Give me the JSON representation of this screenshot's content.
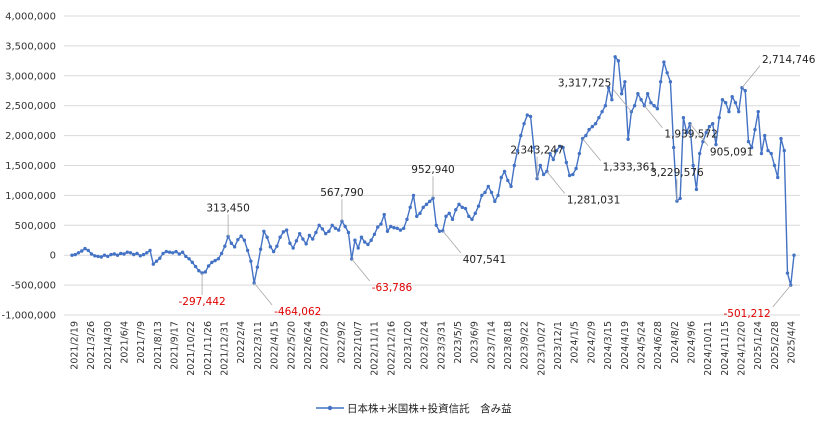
{
  "chart_data": {
    "type": "line",
    "title": "",
    "xlabel": "",
    "ylabel": "",
    "ylim": [
      -1000000,
      4000000
    ],
    "y_ticks": [
      4000000,
      3500000,
      3000000,
      2500000,
      2000000,
      1500000,
      1000000,
      500000,
      0,
      -500000,
      -1000000
    ],
    "y_tick_labels": [
      "4,000,000",
      "3,500,000",
      "3,000,000",
      "2,500,000",
      "2,000,000",
      "1,500,000",
      "1,000,000",
      "500,000",
      "0",
      "-500,000",
      "-1,000,000"
    ],
    "grid": "horizontal",
    "legend": "bottom",
    "series": [
      {
        "name": "日本株+米国株+投資信託　含み益",
        "color": "#4472c4",
        "values": [
          0,
          10000,
          40000,
          70000,
          110000,
          80000,
          20000,
          -10000,
          -20000,
          -30000,
          0,
          -20000,
          10000,
          20000,
          0,
          30000,
          20000,
          50000,
          40000,
          10000,
          30000,
          -10000,
          10000,
          40000,
          80000,
          -150000,
          -100000,
          -50000,
          30000,
          60000,
          50000,
          40000,
          60000,
          20000,
          50000,
          -20000,
          -60000,
          -120000,
          -190000,
          -260000,
          -297442,
          -280000,
          -180000,
          -120000,
          -90000,
          -60000,
          30000,
          150000,
          313450,
          200000,
          140000,
          260000,
          320000,
          250000,
          80000,
          -100000,
          -464062,
          -200000,
          100000,
          400000,
          300000,
          140000,
          60000,
          150000,
          300000,
          390000,
          420000,
          200000,
          120000,
          240000,
          360000,
          270000,
          190000,
          330000,
          270000,
          380000,
          500000,
          440000,
          360000,
          400000,
          500000,
          450000,
          420000,
          567790,
          480000,
          380000,
          -63786,
          250000,
          120000,
          300000,
          220000,
          180000,
          250000,
          350000,
          470000,
          520000,
          680000,
          400000,
          480000,
          460000,
          450000,
          420000,
          450000,
          600000,
          800000,
          1000000,
          650000,
          700000,
          800000,
          850000,
          900000,
          952940,
          500000,
          400000,
          407541,
          650000,
          700000,
          600000,
          760000,
          850000,
          800000,
          780000,
          650000,
          600000,
          700000,
          820000,
          1000000,
          1050000,
          1150000,
          1050000,
          900000,
          1000000,
          1300000,
          1400000,
          1250000,
          1150000,
          1500000,
          1750000,
          2000000,
          2200000,
          2343247,
          2320000,
          1800000,
          1281031,
          1500000,
          1350000,
          1400000,
          1700000,
          1600000,
          1750000,
          1820000,
          1800000,
          1550000,
          1333361,
          1350000,
          1450000,
          1700000,
          1950000,
          2000000,
          2100000,
          2150000,
          2200000,
          2300000,
          2400000,
          2500000,
          2800000,
          2600000,
          3317725,
          3250000,
          2700000,
          2900000,
          1939572,
          2400000,
          2500000,
          2700000,
          2600000,
          2500000,
          2700000,
          2550000,
          2500000,
          2450000,
          2900000,
          3229576,
          3050000,
          2900000,
          1800000,
          905091,
          950000,
          2300000,
          2050000,
          2200000,
          1500000,
          1100000,
          1700000,
          1900000,
          2050000,
          2150000,
          2200000,
          1850000,
          2300000,
          2600000,
          2550000,
          2400000,
          2650000,
          2550000,
          2400000,
          2800000,
          2750000,
          1900000,
          1800000,
          2100000,
          2400000,
          1700000,
          2000000,
          1750000,
          1700000,
          1500000,
          1300000,
          1950000,
          1750000,
          -300000,
          -501212,
          0
        ]
      }
    ],
    "x_tick_labels": [
      "2021/2/19",
      "2021/3/26",
      "2021/4/30",
      "2021/6/4",
      "2021/7/9",
      "2021/8/13",
      "2021/9/17",
      "2021/10/22",
      "2021/11/26",
      "2021/12/31",
      "2022/2/4",
      "2022/3/11",
      "2022/4/15",
      "2022/5/20",
      "2022/6/24",
      "2022/7/29",
      "2022/9/2",
      "2022/10/7",
      "2022/11/11",
      "2022/12/16",
      "2023/1/20",
      "2023/2/24",
      "2023/3/31",
      "2023/5/5",
      "2023/6/9",
      "2023/7/14",
      "2023/8/18",
      "2023/9/22",
      "2023/10/27",
      "2023/12/1",
      "2024/1/5",
      "2024/2/9",
      "2024/3/15",
      "2024/4/19",
      "2024/5/24",
      "2024/6/28",
      "2024/8/2",
      "2024/9/6",
      "2024/10/11",
      "2024/11/15",
      "2024/12/20",
      "2025/1/24",
      "2025/2/28",
      "2025/4/4"
    ],
    "annotations": [
      {
        "index": 40,
        "text": "-297,442",
        "negative": true,
        "dx": 0,
        "dy": 1
      },
      {
        "index": 48,
        "text": "313,450",
        "negative": false,
        "dx": 0,
        "dy": -1
      },
      {
        "index": 56,
        "text": "-464,062",
        "negative": true,
        "dx": 1,
        "dy": 1
      },
      {
        "index": 83,
        "text": "567,790",
        "negative": false,
        "dx": 0,
        "dy": -1
      },
      {
        "index": 86,
        "text": "-63,786",
        "negative": true,
        "dx": 1,
        "dy": 1
      },
      {
        "index": 111,
        "text": "952,940",
        "negative": false,
        "dx": 0,
        "dy": -1
      },
      {
        "index": 114,
        "text": "407,541",
        "negative": false,
        "dx": 1,
        "dy": 1
      },
      {
        "index": 143,
        "text": "2,343,247",
        "negative": false,
        "dx": 0,
        "dy": -1
      },
      {
        "index": 146,
        "text": "1,281,031",
        "negative": false,
        "dx": 1,
        "dy": 1
      },
      {
        "index": 157,
        "text": "1,333,361",
        "negative": false,
        "dx": 1,
        "dy": 1
      },
      {
        "index": 172,
        "text": "3,317,725",
        "negative": false,
        "dx": -1,
        "dy": -1
      },
      {
        "index": 176,
        "text": "1,939,572",
        "negative": false,
        "dx": 1,
        "dy": 1
      },
      {
        "index": 186,
        "text": "3,229,576",
        "negative": false,
        "dx": 0,
        "dy": -1
      },
      {
        "index": 190,
        "text": "905,091",
        "negative": false,
        "dx": 1,
        "dy": 1
      },
      {
        "index": 206,
        "text": "2,714,746",
        "negative": false,
        "dx": 1,
        "dy": -1
      },
      {
        "index": 221,
        "text": "-501,212",
        "negative": true,
        "dx": -1,
        "dy": 1
      }
    ]
  }
}
